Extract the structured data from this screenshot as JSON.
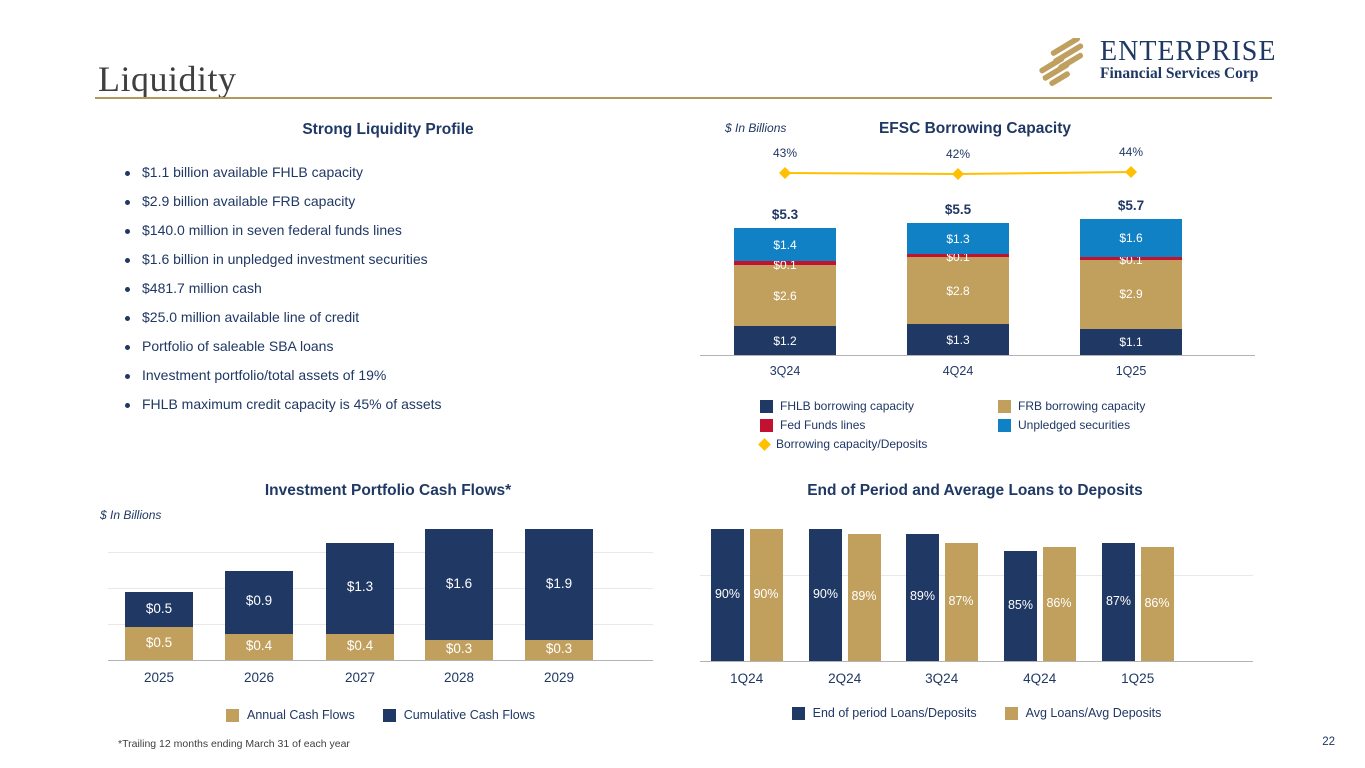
{
  "slide": {
    "title": "Liquidity",
    "page_number": "22",
    "footnote": "*Trailing 12 months ending March 31 of each year"
  },
  "logo": {
    "name": "ENTERPRISE",
    "subtitle": "Financial Services Corp"
  },
  "colors": {
    "navy": "#1f3864",
    "tan": "#c1a05e",
    "red": "#c3122f",
    "light_blue": "#1081c5",
    "accent_line": "#ffc000",
    "rule_gold": "#b3985c"
  },
  "liquidity_profile": {
    "title": "Strong Liquidity Profile",
    "bullets": [
      "$1.1 billion available FHLB capacity",
      "$2.9 billion available FRB capacity",
      "$140.0 million in seven federal funds lines",
      "$1.6 billion in unpledged investment securities",
      "$481.7 million cash",
      "$25.0 million available line of credit",
      "Portfolio of saleable SBA loans",
      "Investment portfolio/total assets of 19%",
      "FHLB maximum credit capacity is 45% of assets"
    ]
  },
  "chart_data": [
    {
      "id": "efsc_borrowing_capacity",
      "type": "bar",
      "subtype": "stacked-bar-with-line",
      "title": "EFSC Borrowing Capacity",
      "units_label": "$ In Billions",
      "categories": [
        "3Q24",
        "4Q24",
        "1Q25"
      ],
      "series": [
        {
          "name": "FHLB borrowing capacity",
          "color": "#1f3864",
          "values": [
            1.2,
            1.3,
            1.1
          ]
        },
        {
          "name": "FRB borrowing capacity",
          "color": "#c1a05e",
          "values": [
            2.6,
            2.8,
            2.9
          ]
        },
        {
          "name": "Fed Funds lines",
          "color": "#c3122f",
          "values": [
            0.1,
            0.1,
            0.1
          ]
        },
        {
          "name": "Unpledged securities",
          "color": "#1081c5",
          "values": [
            1.4,
            1.3,
            1.6
          ]
        }
      ],
      "totals": [
        5.3,
        5.5,
        5.7
      ],
      "line": {
        "name": "Borrowing capacity/Deposits",
        "color": "#ffc000",
        "values_pct": [
          43,
          42,
          44
        ]
      },
      "legend_position": "bottom",
      "grid": false
    },
    {
      "id": "investment_portfolio_cash_flows",
      "type": "bar",
      "subtype": "stacked-bar",
      "title": "Investment Portfolio Cash Flows*",
      "units_label": "$ In Billions",
      "categories": [
        "2025",
        "2026",
        "2027",
        "2028",
        "2029"
      ],
      "series": [
        {
          "name": "Annual Cash Flows",
          "color": "#c1a05e",
          "values": [
            0.5,
            0.4,
            0.4,
            0.3,
            0.3
          ]
        },
        {
          "name": "Cumulative Cash Flows",
          "color": "#1f3864",
          "values": [
            0.5,
            0.9,
            1.3,
            1.6,
            1.9
          ]
        }
      ],
      "legend_position": "bottom",
      "grid": true,
      "gridline_step_billions": 0.5
    },
    {
      "id": "loans_to_deposits",
      "type": "bar",
      "subtype": "grouped-bar",
      "title": "End of Period and Average Loans to Deposits",
      "categories": [
        "1Q24",
        "2Q24",
        "3Q24",
        "4Q24",
        "1Q25"
      ],
      "series": [
        {
          "name": "End of period Loans/Deposits",
          "color": "#1f3864",
          "values": [
            90,
            90,
            89,
            85,
            87
          ]
        },
        {
          "name": "Avg Loans/Avg Deposits",
          "color": "#c1a05e",
          "values": [
            90,
            89,
            87,
            86,
            86
          ]
        }
      ],
      "value_suffix": "%",
      "legend_position": "bottom",
      "grid": true
    }
  ]
}
